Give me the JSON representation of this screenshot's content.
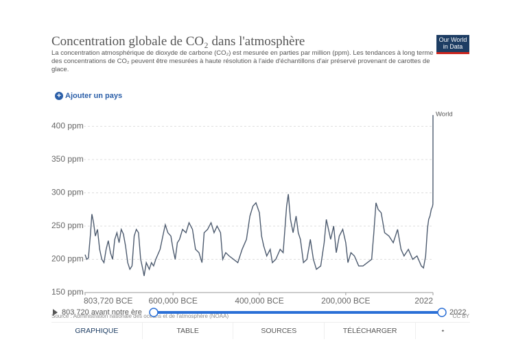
{
  "chart_data": {
    "type": "line",
    "title": "Concentration globale de CO₂ dans l'atmosphère",
    "subtitle": "La concentration atmosphérique de dioxyde de carbone (CO₂) est mesurée en parties par million (ppm). Les tendances à long terme des concentrations de CO₂ peuvent être mesurées à haute résolution à l'aide d'échantillons d'air préservé provenant de carottes de glace.",
    "x": [
      -803720,
      -800000,
      -796000,
      -791000,
      -788000,
      -784000,
      -780000,
      -775000,
      -770000,
      -765000,
      -760000,
      -755000,
      -750000,
      -745000,
      -740000,
      -735000,
      -730000,
      -725000,
      -720000,
      -715000,
      -710000,
      -705000,
      -700000,
      -695000,
      -690000,
      -685000,
      -680000,
      -675000,
      -670000,
      -667000,
      -662000,
      -655000,
      -650000,
      -645000,
      -640000,
      -630000,
      -622000,
      -618000,
      -612000,
      -605000,
      -600000,
      -595000,
      -590000,
      -585000,
      -578000,
      -570000,
      -563000,
      -555000,
      -548000,
      -540000,
      -533000,
      -528000,
      -520000,
      -512000,
      -505000,
      -498000,
      -490000,
      -485000,
      -478000,
      -470000,
      -460000,
      -450000,
      -440000,
      -430000,
      -422000,
      -415000,
      -408000,
      -400000,
      -395000,
      -390000,
      -383000,
      -375000,
      -370000,
      -362000,
      -352000,
      -345000,
      -337000,
      -333000,
      -328000,
      -322000,
      -315000,
      -310000,
      -305000,
      -298000,
      -290000,
      -282000,
      -275000,
      -268000,
      -258000,
      -250000,
      -245000,
      -240000,
      -235000,
      -228000,
      -222000,
      -215000,
      -207000,
      -200000,
      -195000,
      -188000,
      -180000,
      -170000,
      -160000,
      -150000,
      -140000,
      -135000,
      -130000,
      -125000,
      -118000,
      -110000,
      -100000,
      -90000,
      -80000,
      -72000,
      -65000,
      -55000,
      -45000,
      -35000,
      -25000,
      -20000,
      -15000,
      -11000,
      -8000,
      -5000,
      -2000,
      0,
      1000,
      1800,
      1900,
      1950,
      1980,
      2000,
      2022
    ],
    "series": [
      {
        "name": "World",
        "color": "#4c5a6e",
        "values": [
          207,
          200,
          202,
          240,
          268,
          255,
          235,
          245,
          215,
          200,
          195,
          215,
          228,
          210,
          200,
          230,
          240,
          225,
          245,
          238,
          220,
          195,
          185,
          190,
          235,
          245,
          240,
          200,
          185,
          175,
          195,
          185,
          195,
          190,
          200,
          215,
          240,
          252,
          240,
          235,
          215,
          200,
          225,
          230,
          245,
          240,
          255,
          245,
          215,
          210,
          195,
          240,
          245,
          255,
          240,
          250,
          240,
          200,
          210,
          205,
          200,
          195,
          215,
          230,
          265,
          280,
          285,
          270,
          235,
          220,
          205,
          215,
          195,
          200,
          215,
          210,
          280,
          298,
          260,
          240,
          265,
          240,
          230,
          195,
          200,
          230,
          200,
          185,
          190,
          225,
          260,
          245,
          230,
          250,
          210,
          235,
          245,
          225,
          195,
          210,
          205,
          190,
          190,
          195,
          200,
          240,
          285,
          275,
          270,
          240,
          235,
          225,
          245,
          215,
          205,
          215,
          200,
          205,
          190,
          187,
          205,
          245,
          260,
          265,
          275,
          278,
          280,
          283,
          296,
          311,
          338,
          369,
          417
        ]
      }
    ],
    "xlim": [
      -803720,
      2022
    ],
    "xticks": [
      {
        "value": -803720,
        "label": "803,720 BCE"
      },
      {
        "value": -600000,
        "label": "600,000 BCE"
      },
      {
        "value": -400000,
        "label": "400,000 BCE"
      },
      {
        "value": -200000,
        "label": "200,000 BCE"
      },
      2022
    ],
    "ylim": [
      150,
      420
    ],
    "yticks": [
      {
        "value": 150,
        "label": "150 ppm"
      },
      {
        "value": 200,
        "label": "200 ppm"
      },
      {
        "value": 250,
        "label": "250 ppm"
      },
      {
        "value": 300,
        "label": "300 ppm"
      },
      {
        "value": 350,
        "label": "350 ppm"
      },
      {
        "value": 400,
        "label": "400 ppm"
      }
    ],
    "grid": true
  },
  "logo": "Our World in Data",
  "add_country": "Ajouter un pays",
  "timeline": {
    "start": "803 720 avant notre ère",
    "end": "2022"
  },
  "source": "Source : Administration nationale des océans et de l'atmosphère (NOAA)",
  "license": "CC BY",
  "tabs": [
    "GRAPHIQUE",
    "TABLE",
    "SOURCES",
    "TÉLÉCHARGER"
  ]
}
